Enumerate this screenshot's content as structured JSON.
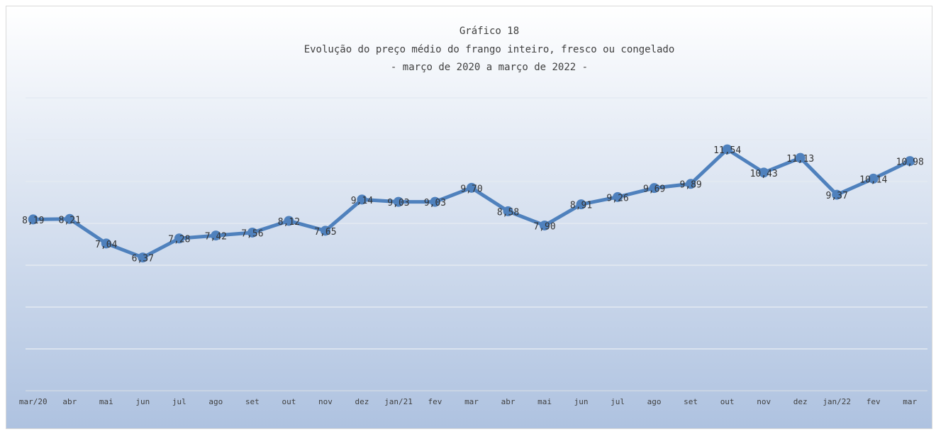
{
  "chart_data": {
    "type": "line",
    "title": "Gráfico 18",
    "subtitle": "Evolução do preço médio do frango inteiro, fresco ou congelado",
    "subtitle2": "- março de 2020 a março de 2022 -",
    "categories": [
      "mar/20",
      "abr",
      "mai",
      "jun",
      "jul",
      "ago",
      "set",
      "out",
      "nov",
      "dez",
      "jan/21",
      "fev",
      "mar",
      "abr",
      "mai",
      "jun",
      "jul",
      "ago",
      "set",
      "out",
      "nov",
      "dez",
      "jan/22",
      "fev",
      "mar"
    ],
    "series": [
      {
        "name": "Preço médio",
        "color": "#4f81bd",
        "values": [
          8.19,
          8.21,
          7.04,
          6.37,
          7.28,
          7.42,
          7.56,
          8.12,
          7.65,
          9.14,
          9.03,
          9.03,
          9.7,
          8.58,
          7.9,
          8.91,
          9.26,
          9.69,
          9.89,
          11.54,
          10.43,
          11.13,
          9.37,
          10.14,
          10.98
        ],
        "value_labels": [
          "8,19",
          "8,21",
          "7,04",
          "6,37",
          "7,28",
          "7,42",
          "7,56",
          "8,12",
          "7,65",
          "9,14",
          "9,03",
          "9,03",
          "9,70",
          "8,58",
          "7,90",
          "8,91",
          "9,26",
          "9,69",
          "9,89",
          "11,54",
          "10,43",
          "11,13",
          "9,37",
          "10,14",
          "10,98"
        ]
      }
    ],
    "ylim": [
      0,
      14
    ],
    "yticks": [
      0,
      2,
      4,
      6,
      8,
      10,
      12,
      14
    ],
    "grid": true
  }
}
